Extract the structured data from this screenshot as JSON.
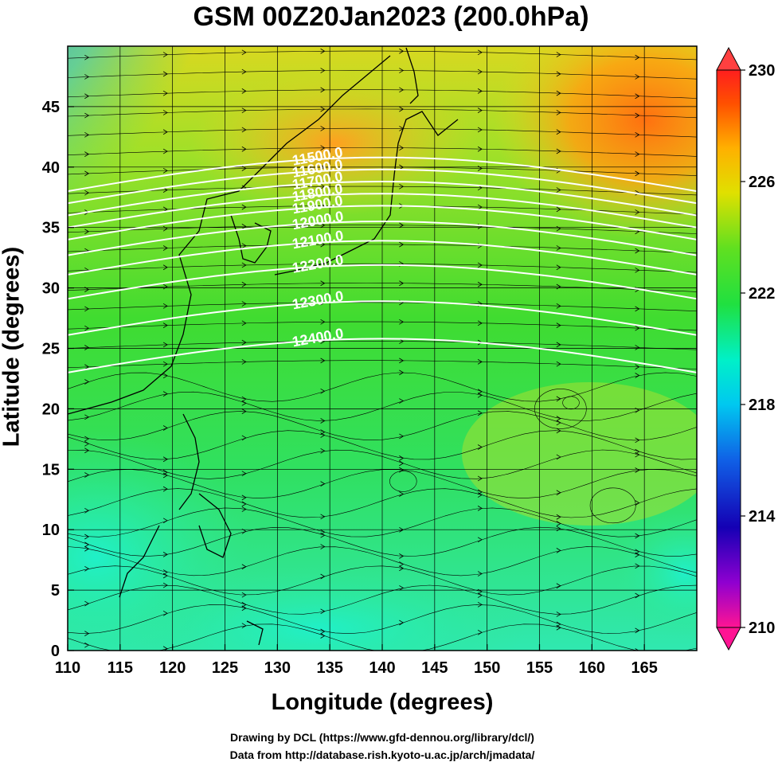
{
  "title": "GSM 00Z20Jan2023 (200.0hPa)",
  "xlabel": "Longitude (degrees)",
  "ylabel": "Latitude  (degrees)",
  "credits": {
    "line1": "Drawing by DCL (https://www.gfd-dennou.org/library/dcl/)",
    "line2": "Data from http://database.rish.kyoto-u.ac.jp/arch/jmadata/"
  },
  "map": {
    "lon_range": [
      110,
      170
    ],
    "lat_range": [
      0,
      50
    ],
    "x_ticks": [
      "110",
      "115",
      "120",
      "125",
      "130",
      "135",
      "140",
      "145",
      "150",
      "155",
      "160",
      "165"
    ],
    "y_ticks": [
      "0",
      "5",
      "10",
      "15",
      "20",
      "25",
      "30",
      "35",
      "40",
      "45"
    ],
    "field": "temperature",
    "contour_labels": [
      "11500.0",
      "11600.0",
      "11700.0",
      "11800.0",
      "11900.0",
      "12000.0",
      "12100.0",
      "12200.0",
      "12300.0",
      "12400.0"
    ],
    "contour_latitudes": [
      39.5,
      38.5,
      37.5,
      36.5,
      35.5,
      34.2,
      32.6,
      30.6,
      27.6,
      24.5
    ]
  },
  "colorbar": {
    "min": 210,
    "max": 230,
    "labels": [
      "230",
      "226",
      "222",
      "218",
      "214",
      "210"
    ],
    "colors": [
      "#ff1493",
      "#8b00c8",
      "#1a00b4",
      "#0050e6",
      "#00b4f0",
      "#00f0c8",
      "#00e664",
      "#30e030",
      "#90e020",
      "#e8e000",
      "#ffb000",
      "#ff6400",
      "#ff2000"
    ]
  }
}
